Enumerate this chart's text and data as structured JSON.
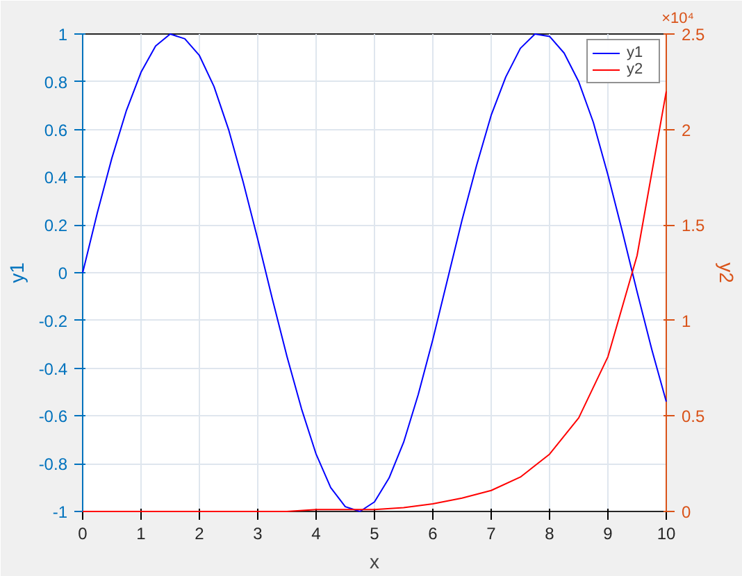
{
  "chart_data": {
    "type": "line",
    "xlabel": "x",
    "ylabel": "y1",
    "y2label": "y2",
    "xlim": [
      0,
      10
    ],
    "xticks": [
      0,
      1,
      2,
      3,
      4,
      5,
      6,
      7,
      8,
      9,
      10
    ],
    "ylim": [
      -1,
      1
    ],
    "yticks": [
      -1,
      -0.8,
      -0.6,
      -0.4,
      -0.2,
      0,
      0.2,
      0.4,
      0.6,
      0.8,
      1
    ],
    "y2lim": [
      0,
      2.5
    ],
    "y2ticks": [
      0,
      0.5,
      1,
      1.5,
      2,
      2.5
    ],
    "grid": true,
    "legend": "top right",
    "annotations": [
      "×10⁴"
    ],
    "series": [
      {
        "name": "y1",
        "color": "#0000ff",
        "x": [
          0,
          0.25,
          0.5,
          0.75,
          1,
          1.25,
          1.5,
          1.75,
          2,
          2.25,
          2.5,
          2.75,
          3,
          3.25,
          3.5,
          3.75,
          4,
          4.25,
          4.5,
          4.75,
          5,
          5.25,
          5.5,
          5.75,
          6,
          6.25,
          6.5,
          6.75,
          7,
          7.25,
          7.5,
          7.75,
          8,
          8.25,
          8.5,
          8.75,
          9,
          9.25,
          9.5,
          9.75,
          10
        ],
        "values": [
          0,
          0.25,
          0.48,
          0.68,
          0.84,
          0.95,
          1.0,
          0.98,
          0.91,
          0.78,
          0.6,
          0.38,
          0.14,
          -0.11,
          -0.35,
          -0.57,
          -0.76,
          -0.9,
          -0.98,
          -1.0,
          -0.96,
          -0.86,
          -0.71,
          -0.51,
          -0.28,
          -0.03,
          0.22,
          0.45,
          0.66,
          0.82,
          0.94,
          1.0,
          0.99,
          0.92,
          0.8,
          0.63,
          0.41,
          0.17,
          -0.08,
          -0.32,
          -0.54
        ]
      },
      {
        "name": "y2",
        "color": "#ff0000",
        "axis": "y2",
        "x": [
          0,
          0.5,
          1,
          1.5,
          2,
          2.5,
          3,
          3.5,
          4,
          4.5,
          5,
          5.5,
          6,
          6.5,
          7,
          7.5,
          8,
          8.5,
          9,
          9.5,
          10
        ],
        "values": [
          0,
          0,
          0,
          0,
          0,
          0,
          0,
          0,
          0.01,
          0.01,
          0.01,
          0.02,
          0.04,
          0.07,
          0.11,
          0.18,
          0.3,
          0.49,
          0.81,
          1.34,
          2.2
        ]
      }
    ]
  }
}
